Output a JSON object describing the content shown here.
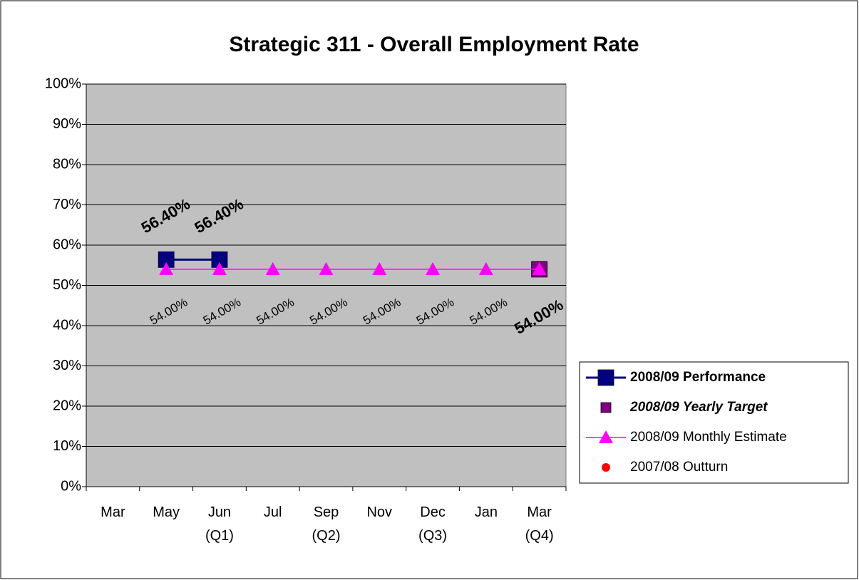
{
  "chart_data": {
    "type": "line",
    "title": "Strategic 311 - Overall Employment Rate",
    "categories": [
      "Mar",
      "May",
      "Jun\n(Q1)",
      "Jul",
      "Sep\n(Q2)",
      "Nov",
      "Dec\n(Q3)",
      "Jan",
      "Mar\n(Q4)"
    ],
    "ylim": [
      0,
      100
    ],
    "yticks": [
      {
        "value": 0,
        "label": "0%"
      },
      {
        "value": 10,
        "label": "10%"
      },
      {
        "value": 20,
        "label": "20%"
      },
      {
        "value": 30,
        "label": "30%"
      },
      {
        "value": 40,
        "label": "40%"
      },
      {
        "value": 50,
        "label": "50%"
      },
      {
        "value": 60,
        "label": "60%"
      },
      {
        "value": 70,
        "label": "70%"
      },
      {
        "value": 80,
        "label": "80%"
      },
      {
        "value": 90,
        "label": "90%"
      },
      {
        "value": 100,
        "label": "100%"
      }
    ],
    "grid": true,
    "legend": "right",
    "series": [
      {
        "name": "2008/09 Performance",
        "color": "#000080",
        "marker": "square",
        "line": true,
        "legend_style": "bold",
        "label_style": "bold",
        "label_position": "above",
        "values": [
          null,
          56.4,
          56.4,
          null,
          null,
          null,
          null,
          null,
          null
        ],
        "value_labels": [
          null,
          "56.40%",
          "56.40%",
          null,
          null,
          null,
          null,
          null,
          null
        ]
      },
      {
        "name": "2008/09 Yearly Target",
        "color": "#800080",
        "marker": "square",
        "line": false,
        "legend_style": "bold-italic",
        "label_style": "bold",
        "label_position": "below",
        "values": [
          null,
          null,
          null,
          null,
          null,
          null,
          null,
          null,
          54
        ],
        "value_labels": [
          null,
          null,
          null,
          null,
          null,
          null,
          null,
          null,
          "54.00%"
        ]
      },
      {
        "name": "2008/09 Monthly Estimate",
        "color": "#ff00ff",
        "marker": "triangle",
        "line": true,
        "legend_style": "normal",
        "label_style": "normal",
        "label_position": "below",
        "values": [
          null,
          54,
          54,
          54,
          54,
          54,
          54,
          54,
          54
        ],
        "value_labels": [
          null,
          "54.00%",
          "54.00%",
          "54.00%",
          "54.00%",
          "54.00%",
          "54.00%",
          "54.00%",
          null
        ]
      },
      {
        "name": "2007/08 Outturn",
        "color": "#ff0000",
        "marker": "circle",
        "line": false,
        "legend_style": "normal",
        "label_style": "normal",
        "label_position": "below",
        "values": [
          null,
          null,
          null,
          null,
          null,
          null,
          null,
          null,
          null
        ]
      }
    ]
  }
}
